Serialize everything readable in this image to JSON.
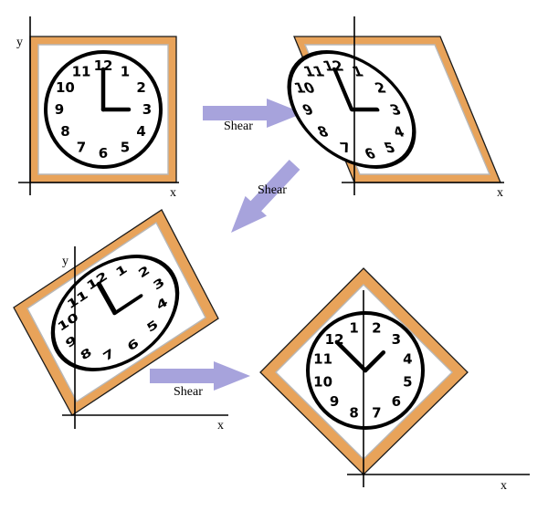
{
  "labels": {
    "x": "x",
    "y": "y",
    "shear": "Shear"
  },
  "clock_numbers": [
    "12",
    "1",
    "2",
    "3",
    "4",
    "5",
    "6",
    "7",
    "8",
    "9",
    "10",
    "11"
  ],
  "colors": {
    "frame": "#e8a35a",
    "arrow": "#a7a3dc",
    "inner_border": "#b8b8b8"
  }
}
